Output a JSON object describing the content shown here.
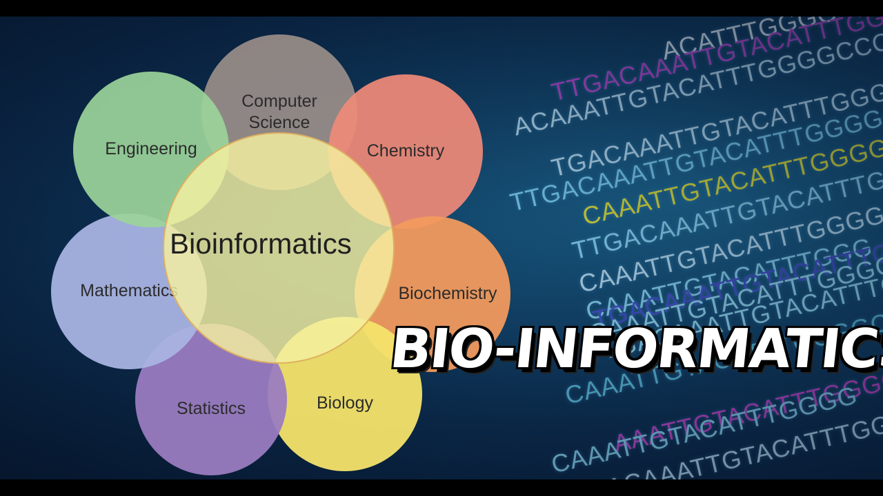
{
  "diagram": {
    "center_label": "Bioinformatics",
    "disciplines": [
      {
        "label": "Computer\nScience",
        "color": "#9a8e89"
      },
      {
        "label": "Chemistry",
        "color": "#f08a78"
      },
      {
        "label": "Biochemistry",
        "color": "#f29a5c"
      },
      {
        "label": "Biology",
        "color": "#f4e36a"
      },
      {
        "label": "Statistics",
        "color": "#9a7cc0"
      },
      {
        "label": "Mathematics",
        "color": "#a9b4e2"
      },
      {
        "label": "Engineering",
        "color": "#9bd49a"
      }
    ],
    "center_color": "#f5f0a0"
  },
  "title": "BIO-INFORMATICS",
  "dna_sequences": [
    {
      "text": "ACATTTGGGG",
      "color": "#e6f6ff"
    },
    {
      "text": "TTGACAAATTGTACATTTGGGGG",
      "color": "#c450e0"
    },
    {
      "text": "ACAAATTGTACATTTGGGGCCC",
      "color": "#bfe9ff"
    },
    {
      "text": "TGACAAATTGTACATTTGGGG",
      "color": "#bfe9ff"
    },
    {
      "text": "TTGACAAATTGTACATTTGGGGCC",
      "color": "#7fd9ff"
    },
    {
      "text": "CAAATTGTACATTTGGGGCC",
      "color": "#e8ec3a"
    },
    {
      "text": "TTGACAAATTGTACATTTGGG",
      "color": "#8fe0ff"
    },
    {
      "text": "CAAATTGTACATTTGGGGCC",
      "color": "#bfe9ff"
    },
    {
      "text": "CAAATTGTACATTTGGG",
      "color": "#8fe0ff"
    },
    {
      "text": "TGACAAATTGTACATTTGGG",
      "color": "#4a54d8"
    },
    {
      "text": "CAAATTGTACATTTGGGGC",
      "color": "#9ae6ff"
    },
    {
      "text": "TTGACAAATTGTACATTTGG",
      "color": "#9ae6ff"
    },
    {
      "text": "CAAATTGTACATTTGGGGCC",
      "color": "#5fc8e8"
    },
    {
      "text": "AAATTGTACATTTGGGGCC",
      "color": "#d04ad8"
    },
    {
      "text": "CAAATTGTACATTTGGGG",
      "color": "#8fe0ff"
    },
    {
      "text": "TGACAAATTGTACATTTGGGGCC",
      "color": "#bfe9ff"
    }
  ]
}
